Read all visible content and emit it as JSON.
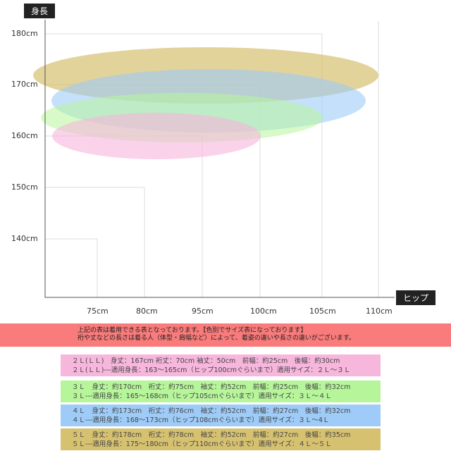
{
  "y_axis": {
    "title": "身長",
    "ticks": [
      "180cm",
      "170cm",
      "160cm",
      "150cm",
      "140cm"
    ]
  },
  "x_axis": {
    "title": "ヒップ",
    "ticks": [
      "75cm",
      "80cm",
      "95cm",
      "100cm",
      "105cm",
      "110cm"
    ]
  },
  "colors": {
    "2L": "#f7b6dc",
    "3L": "#b6f59a",
    "4L": "#9ecbf7",
    "5L": "#d6c170",
    "note": "#f97b7b"
  },
  "note": {
    "line1": "上記の表は着用できる表となっております。【色別でサイズ表になっております】",
    "line2": "裄や丈などの長さは着る人（体型・肩幅など）によって、着姿の違いや長さの違いがございます。"
  },
  "sizes": [
    {
      "line1": "２Ｌ(ＬＬ)　身丈：167cm 裄丈：70cm 袖丈：50cm　前幅：約25cm　後幅：約30cm",
      "line2": "２Ｌ(ＬＬ)---適用身長：163～165cm（ヒップ100cmぐらいまで）適用サイズ：２Ｌ～３Ｌ"
    },
    {
      "line1": "３Ｌ　身丈：約170cm　裄丈：約75cm　袖丈：約52cm　前幅：約25cm　後幅：約32cm",
      "line2": "３Ｌ---適用身長：165～168cm（ヒップ105cmぐらいまで）適用サイズ：３Ｌ～４Ｌ"
    },
    {
      "line1": "４Ｌ　身丈：約173cm　裄丈：約76cm　袖丈：約52cm　前幅：約27cm　後幅：約32cm",
      "line2": "４Ｌ---適用身長：168～173cm（ヒップ108cmぐらいまで）適用サイズ：３Ｌ～4Ｌ"
    },
    {
      "line1": "５Ｌ　身丈：約178cm　裄丈：約78cm　袖丈：約52cm　前幅：約27cm　後幅：約35cm",
      "line2": "５Ｌ---適用身長：175～180cm（ヒップ110cmぐらいまで）適用サイズ：４Ｌ～５Ｌ"
    }
  ]
}
